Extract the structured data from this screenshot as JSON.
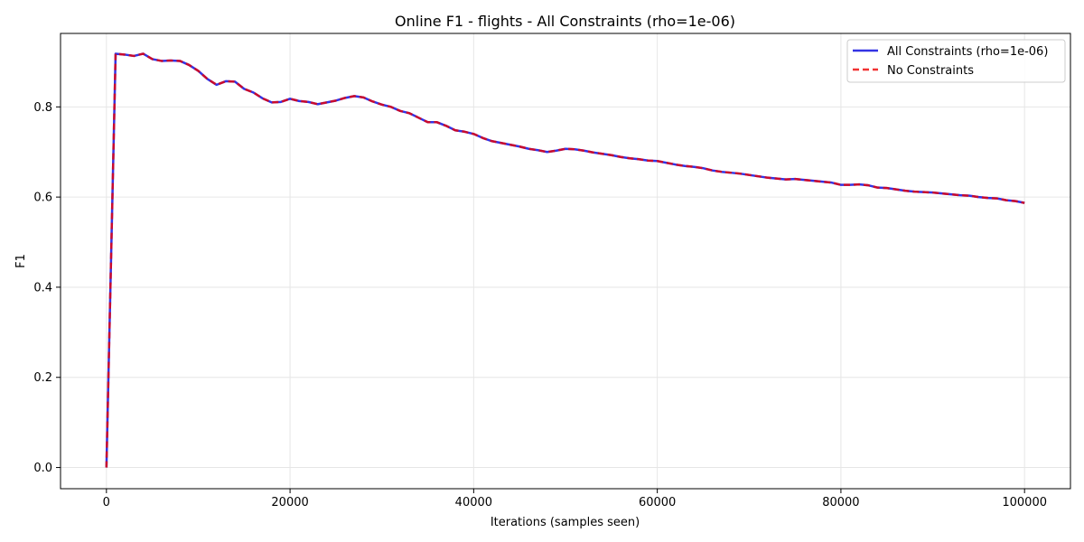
{
  "chart_data": {
    "type": "line",
    "title": "Online F1 - flights - All Constraints (rho=1e-06)",
    "xlabel": "Iterations (samples seen)",
    "ylabel": "F1",
    "xlim": [
      -5000,
      105000
    ],
    "ylim": [
      -0.047,
      0.963
    ],
    "xticks": [
      0,
      20000,
      40000,
      60000,
      80000,
      100000
    ],
    "yticks": [
      0.0,
      0.2,
      0.4,
      0.6,
      0.8
    ],
    "xtick_labels": [
      "0",
      "20000",
      "40000",
      "60000",
      "80000",
      "100000"
    ],
    "ytick_labels": [
      "0.0",
      "0.2",
      "0.4",
      "0.6",
      "0.8"
    ],
    "grid": true,
    "legend_position": "top-right",
    "x": [
      0,
      1000,
      2000,
      3000,
      4000,
      5000,
      6000,
      7000,
      8000,
      9000,
      10000,
      11000,
      12000,
      13000,
      14000,
      15000,
      16000,
      17000,
      18000,
      19000,
      20000,
      21000,
      22000,
      23000,
      24000,
      25000,
      26000,
      27000,
      28000,
      29000,
      30000,
      31000,
      32000,
      33000,
      34000,
      35000,
      36000,
      37000,
      38000,
      39000,
      40000,
      41000,
      42000,
      43000,
      44000,
      45000,
      46000,
      47000,
      48000,
      49000,
      50000,
      51000,
      52000,
      53000,
      54000,
      55000,
      56000,
      57000,
      58000,
      59000,
      60000,
      61000,
      62000,
      63000,
      64000,
      65000,
      66000,
      67000,
      68000,
      69000,
      70000,
      71000,
      72000,
      73000,
      74000,
      75000,
      76000,
      77000,
      78000,
      79000,
      80000,
      81000,
      82000,
      83000,
      84000,
      85000,
      86000,
      87000,
      88000,
      89000,
      90000,
      91000,
      92000,
      93000,
      94000,
      95000,
      96000,
      97000,
      98000,
      99000,
      100000
    ],
    "series": [
      {
        "name": "All Constraints (rho=1e-06)",
        "color": "#0000dd",
        "style": "solid",
        "values": [
          0.0,
          0.918,
          0.916,
          0.913,
          0.918,
          0.906,
          0.902,
          0.903,
          0.902,
          0.893,
          0.88,
          0.862,
          0.849,
          0.857,
          0.856,
          0.84,
          0.832,
          0.819,
          0.81,
          0.811,
          0.818,
          0.813,
          0.811,
          0.806,
          0.81,
          0.814,
          0.82,
          0.824,
          0.821,
          0.812,
          0.805,
          0.8,
          0.791,
          0.786,
          0.776,
          0.766,
          0.766,
          0.758,
          0.748,
          0.745,
          0.74,
          0.731,
          0.724,
          0.72,
          0.716,
          0.712,
          0.707,
          0.704,
          0.7,
          0.703,
          0.707,
          0.706,
          0.703,
          0.699,
          0.696,
          0.693,
          0.689,
          0.686,
          0.684,
          0.681,
          0.68,
          0.676,
          0.672,
          0.669,
          0.667,
          0.664,
          0.659,
          0.656,
          0.654,
          0.652,
          0.649,
          0.646,
          0.643,
          0.641,
          0.639,
          0.64,
          0.638,
          0.636,
          0.634,
          0.632,
          0.627,
          0.627,
          0.628,
          0.626,
          0.621,
          0.62,
          0.617,
          0.614,
          0.612,
          0.611,
          0.61,
          0.608,
          0.606,
          0.604,
          0.603,
          0.6,
          0.598,
          0.597,
          0.593,
          0.591,
          0.587
        ]
      },
      {
        "name": "No Constraints",
        "color": "#ee0000",
        "style": "dashed",
        "values": [
          0.0,
          0.918,
          0.916,
          0.913,
          0.918,
          0.906,
          0.902,
          0.903,
          0.902,
          0.893,
          0.88,
          0.862,
          0.849,
          0.857,
          0.856,
          0.84,
          0.832,
          0.819,
          0.81,
          0.811,
          0.818,
          0.813,
          0.811,
          0.806,
          0.81,
          0.814,
          0.82,
          0.824,
          0.821,
          0.812,
          0.805,
          0.8,
          0.791,
          0.786,
          0.776,
          0.766,
          0.766,
          0.758,
          0.748,
          0.745,
          0.74,
          0.731,
          0.724,
          0.72,
          0.716,
          0.712,
          0.707,
          0.704,
          0.7,
          0.703,
          0.707,
          0.706,
          0.703,
          0.699,
          0.696,
          0.693,
          0.689,
          0.686,
          0.684,
          0.681,
          0.68,
          0.676,
          0.672,
          0.669,
          0.667,
          0.664,
          0.659,
          0.656,
          0.654,
          0.652,
          0.649,
          0.646,
          0.643,
          0.641,
          0.639,
          0.64,
          0.638,
          0.636,
          0.634,
          0.632,
          0.627,
          0.627,
          0.628,
          0.626,
          0.621,
          0.62,
          0.617,
          0.614,
          0.612,
          0.611,
          0.61,
          0.608,
          0.606,
          0.604,
          0.603,
          0.6,
          0.598,
          0.597,
          0.593,
          0.591,
          0.587
        ]
      }
    ]
  }
}
